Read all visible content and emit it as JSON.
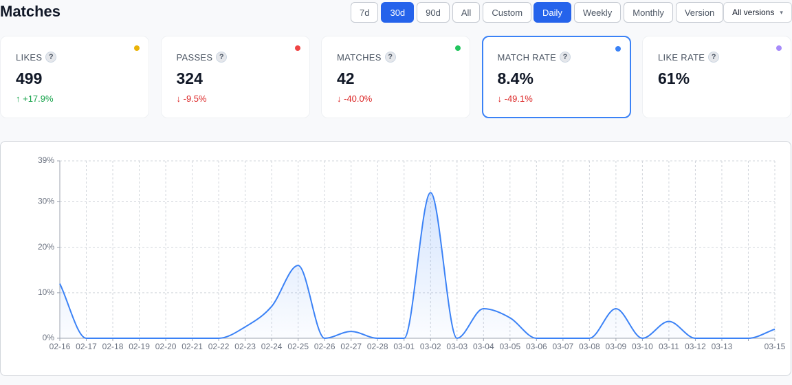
{
  "header": {
    "title": "Matches"
  },
  "range_buttons": [
    {
      "label": "7d",
      "active": false
    },
    {
      "label": "30d",
      "active": true
    },
    {
      "label": "90d",
      "active": false
    },
    {
      "label": "All",
      "active": false
    },
    {
      "label": "Custom",
      "active": false
    }
  ],
  "granularity_buttons": [
    {
      "label": "Daily",
      "active": true
    },
    {
      "label": "Weekly",
      "active": false
    },
    {
      "label": "Monthly",
      "active": false
    },
    {
      "label": "Version",
      "active": false
    }
  ],
  "version_select": {
    "label": "All versions",
    "caret": "▾"
  },
  "help_icon": "?",
  "cards": [
    {
      "label": "LIKES",
      "value": "499",
      "change": "↑ +17.9%",
      "trend": "up",
      "dot_color": "#eab308",
      "selected": false
    },
    {
      "label": "PASSES",
      "value": "324",
      "change": "↓ -9.5%",
      "trend": "down",
      "dot_color": "#ef4444",
      "selected": false
    },
    {
      "label": "MATCHES",
      "value": "42",
      "change": "↓ -40.0%",
      "trend": "down",
      "dot_color": "#22c55e",
      "selected": false
    },
    {
      "label": "MATCH RATE",
      "value": "8.4%",
      "change": "↓ -49.1%",
      "trend": "down",
      "dot_color": "#3b82f6",
      "selected": true
    },
    {
      "label": "LIKE RATE",
      "value": "61%",
      "trend": "none",
      "dot_color": "#a78bfa",
      "selected": false
    }
  ],
  "chart_data": {
    "type": "line",
    "categories": [
      "02-16",
      "02-17",
      "02-18",
      "02-19",
      "02-20",
      "02-21",
      "02-22",
      "02-23",
      "02-24",
      "02-25",
      "02-26",
      "02-27",
      "02-28",
      "03-01",
      "03-02",
      "03-03",
      "03-04",
      "03-05",
      "03-06",
      "03-07",
      "03-08",
      "03-09",
      "03-10",
      "03-11",
      "03-12",
      "03-13",
      null,
      "03-15"
    ],
    "series": [
      {
        "color": "#3b82f6",
        "values": [
          12,
          0,
          0,
          0,
          0,
          0,
          0,
          2.5,
          7,
          16,
          0,
          1.5,
          0,
          0,
          32,
          0,
          6.5,
          4.5,
          0,
          0,
          0,
          6.5,
          0,
          3.7,
          0,
          0,
          0,
          2
        ]
      }
    ],
    "ylim": [
      0,
      39
    ],
    "yticks": [
      {
        "value": 0,
        "label": "0%"
      },
      {
        "value": 10,
        "label": "10%"
      },
      {
        "value": 20,
        "label": "20%"
      },
      {
        "value": 30,
        "label": "30%"
      },
      {
        "value": 39,
        "label": "39%"
      }
    ],
    "grid": true
  }
}
